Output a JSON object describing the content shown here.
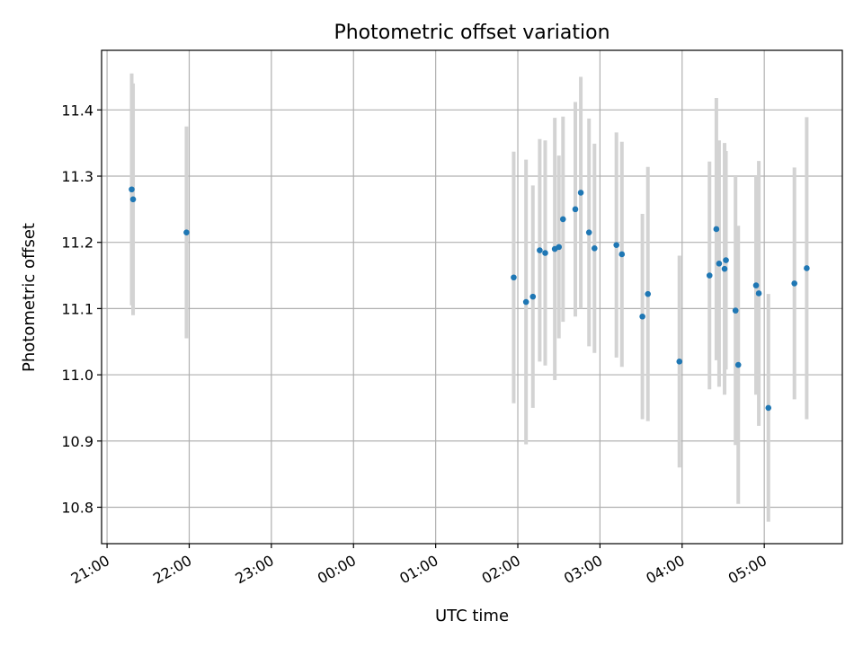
{
  "chart_data": {
    "type": "scatter",
    "title": "Photometric offset variation",
    "xlabel": "UTC time",
    "ylabel": "Photometric offset",
    "x_axis_kind": "time",
    "xlim": [
      "20:56",
      "05:57"
    ],
    "ylim": [
      10.745,
      11.49
    ],
    "grid": true,
    "x_ticks": [
      "21:00",
      "22:00",
      "23:00",
      "00:00",
      "01:00",
      "02:00",
      "03:00",
      "04:00",
      "05:00"
    ],
    "y_ticks": [
      10.8,
      10.9,
      11.0,
      11.1,
      11.2,
      11.3,
      11.4
    ],
    "y_tick_labels": [
      "10.8",
      "10.9",
      "11.0",
      "11.1",
      "11.2",
      "11.3",
      "11.4"
    ],
    "point_color": "#1f77b4",
    "errorbar_color": "#d3d3d3",
    "points": [
      {
        "time": "21:18",
        "y": 11.28,
        "err": 0.175
      },
      {
        "time": "21:19",
        "y": 11.265,
        "err": 0.175
      },
      {
        "time": "21:58",
        "y": 11.215,
        "err": 0.16
      },
      {
        "time": "01:57",
        "y": 11.147,
        "err": 0.19
      },
      {
        "time": "02:06",
        "y": 11.11,
        "err": 0.215
      },
      {
        "time": "02:11",
        "y": 11.118,
        "err": 0.168
      },
      {
        "time": "02:16",
        "y": 11.188,
        "err": 0.168
      },
      {
        "time": "02:20",
        "y": 11.184,
        "err": 0.17
      },
      {
        "time": "02:27",
        "y": 11.19,
        "err": 0.198
      },
      {
        "time": "02:30",
        "y": 11.193,
        "err": 0.138
      },
      {
        "time": "02:33",
        "y": 11.235,
        "err": 0.155
      },
      {
        "time": "02:42",
        "y": 11.25,
        "err": 0.162
      },
      {
        "time": "02:46",
        "y": 11.275,
        "err": 0.175
      },
      {
        "time": "02:52",
        "y": 11.215,
        "err": 0.172
      },
      {
        "time": "02:56",
        "y": 11.191,
        "err": 0.158
      },
      {
        "time": "03:12",
        "y": 11.196,
        "err": 0.17
      },
      {
        "time": "03:16",
        "y": 11.182,
        "err": 0.17
      },
      {
        "time": "03:31",
        "y": 11.088,
        "err": 0.155
      },
      {
        "time": "03:35",
        "y": 11.122,
        "err": 0.192
      },
      {
        "time": "03:58",
        "y": 11.02,
        "err": 0.16
      },
      {
        "time": "04:20",
        "y": 11.15,
        "err": 0.172
      },
      {
        "time": "04:25",
        "y": 11.22,
        "err": 0.198
      },
      {
        "time": "04:27",
        "y": 11.168,
        "err": 0.186
      },
      {
        "time": "04:31",
        "y": 11.16,
        "err": 0.19
      },
      {
        "time": "04:32",
        "y": 11.173,
        "err": 0.165
      },
      {
        "time": "04:39",
        "y": 11.097,
        "err": 0.203
      },
      {
        "time": "04:41",
        "y": 11.015,
        "err": 0.21
      },
      {
        "time": "04:54",
        "y": 11.135,
        "err": 0.165
      },
      {
        "time": "04:56",
        "y": 11.123,
        "err": 0.2
      },
      {
        "time": "05:03",
        "y": 10.95,
        "err": 0.172
      },
      {
        "time": "05:22",
        "y": 11.138,
        "err": 0.175
      },
      {
        "time": "05:31",
        "y": 11.161,
        "err": 0.228
      }
    ]
  }
}
